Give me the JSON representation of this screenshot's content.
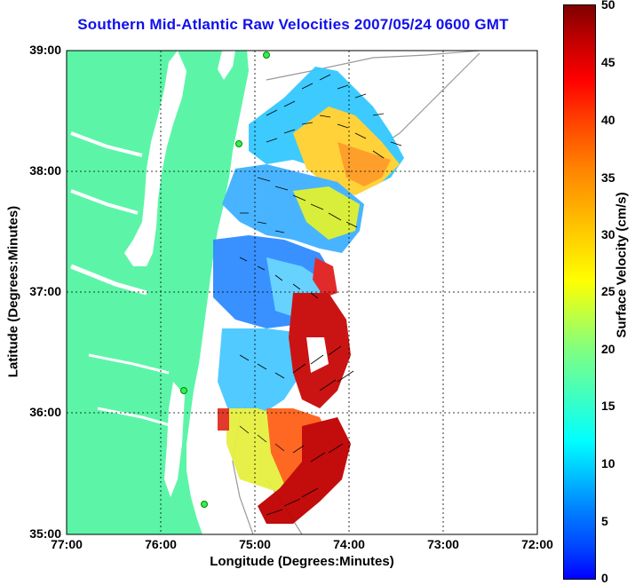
{
  "title": "Southern Mid-Atlantic Raw Velocities 2007/05/24 0600 GMT",
  "x_axis": {
    "label": "Longitude (Degrees:Minutes)",
    "ticks": [
      "77:00",
      "76:00",
      "75:00",
      "74:00",
      "73:00",
      "72:00"
    ]
  },
  "y_axis": {
    "label": "Latitude (Degrees:Minutes)",
    "ticks": [
      "39:00",
      "38:00",
      "37:00",
      "36:00",
      "35:00"
    ]
  },
  "colorbar": {
    "label": "Surface Velocity (cm/s)",
    "ticks": [
      "50",
      "45",
      "40",
      "35",
      "30",
      "25",
      "20",
      "15",
      "10",
      "5",
      "0"
    ],
    "range": [
      0,
      50
    ],
    "colormap": "jet"
  },
  "colors": {
    "land": "#5cf5a8",
    "title": "#1010ee",
    "grid": "#000000",
    "bathymetry": "#999999"
  },
  "map": {
    "lon_range": [
      -77,
      -72
    ],
    "lat_range": [
      35,
      39
    ],
    "grid": "dotted",
    "vector_arrows": true
  }
}
